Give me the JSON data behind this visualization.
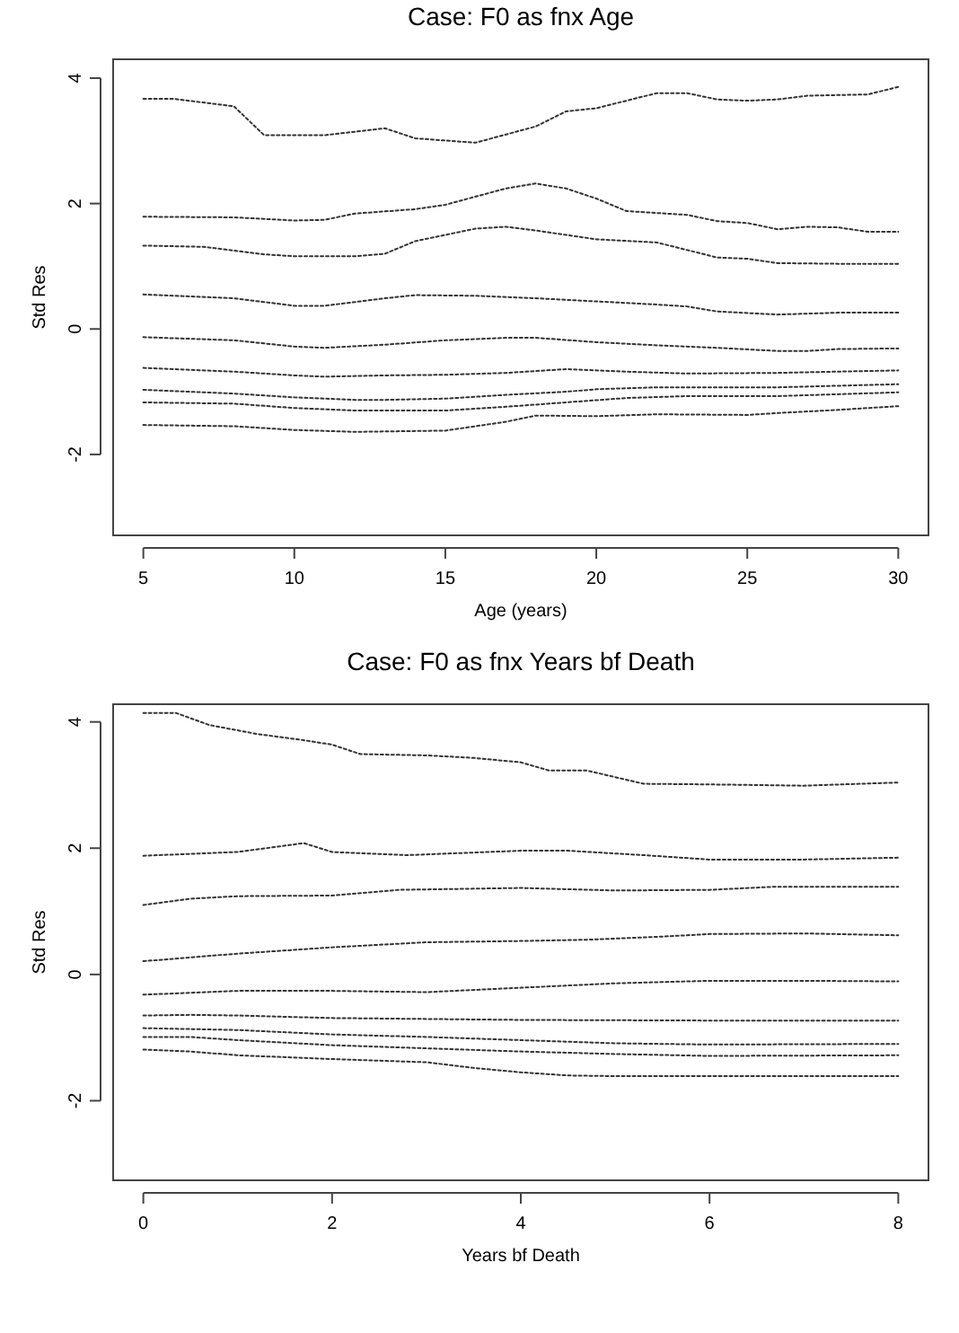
{
  "chart_data": [
    {
      "type": "line",
      "title": "Case: F0 as fnx Age",
      "xlabel": "Age (years)",
      "ylabel": "Std Res",
      "xlim": [
        4,
        31
      ],
      "ylim": [
        -3.29,
        4.3
      ],
      "xticks": [
        5,
        10,
        15,
        20,
        25,
        30
      ],
      "yticks": [
        -2,
        0,
        2,
        4
      ],
      "grid": false,
      "marker": "none",
      "line_style": "dotted",
      "series": [
        {
          "color": "#333333",
          "x": [
            5,
            6,
            8,
            9,
            11,
            13,
            14,
            16,
            18,
            19,
            20,
            22,
            23,
            24,
            25,
            26,
            27,
            29,
            30
          ],
          "values": [
            3.67,
            3.67,
            3.55,
            3.09,
            3.09,
            3.2,
            3.04,
            2.97,
            3.23,
            3.47,
            3.52,
            3.76,
            3.76,
            3.66,
            3.64,
            3.66,
            3.72,
            3.74,
            3.86
          ]
        },
        {
          "color": "#333333",
          "x": [
            5,
            8,
            10,
            11,
            12,
            14,
            15,
            17,
            18,
            19,
            20,
            21,
            23,
            24,
            25,
            26,
            27,
            28,
            29,
            30
          ],
          "values": [
            1.79,
            1.78,
            1.73,
            1.74,
            1.84,
            1.91,
            1.98,
            2.24,
            2.32,
            2.24,
            2.08,
            1.88,
            1.82,
            1.72,
            1.69,
            1.59,
            1.63,
            1.62,
            1.55,
            1.55
          ]
        },
        {
          "color": "#333333",
          "x": [
            5,
            7,
            9,
            10,
            12,
            13,
            14,
            16,
            17,
            18,
            20,
            22,
            24,
            25,
            26,
            28,
            30
          ],
          "values": [
            1.33,
            1.31,
            1.19,
            1.16,
            1.16,
            1.2,
            1.4,
            1.6,
            1.63,
            1.57,
            1.43,
            1.38,
            1.14,
            1.12,
            1.05,
            1.04,
            1.04
          ]
        },
        {
          "color": "#333333",
          "x": [
            5,
            8,
            10,
            11,
            13,
            14,
            16,
            18,
            20,
            22,
            23,
            24,
            26,
            28,
            30
          ],
          "values": [
            0.55,
            0.49,
            0.37,
            0.37,
            0.49,
            0.54,
            0.53,
            0.49,
            0.44,
            0.39,
            0.36,
            0.28,
            0.23,
            0.26,
            0.26
          ]
        },
        {
          "color": "#333333",
          "x": [
            5,
            8,
            10,
            11,
            13,
            15,
            17,
            18,
            20,
            22,
            24,
            26,
            27,
            28,
            30
          ],
          "values": [
            -0.13,
            -0.18,
            -0.28,
            -0.3,
            -0.25,
            -0.18,
            -0.14,
            -0.14,
            -0.21,
            -0.26,
            -0.3,
            -0.35,
            -0.35,
            -0.32,
            -0.31
          ]
        },
        {
          "color": "#333333",
          "x": [
            5,
            8,
            10,
            11,
            13,
            15,
            17,
            19,
            21,
            23,
            26,
            30
          ],
          "values": [
            -0.62,
            -0.68,
            -0.74,
            -0.76,
            -0.74,
            -0.73,
            -0.7,
            -0.64,
            -0.68,
            -0.71,
            -0.7,
            -0.66
          ]
        },
        {
          "color": "#333333",
          "x": [
            5,
            8,
            10,
            12,
            13,
            15,
            17,
            19,
            20,
            22,
            26,
            30
          ],
          "values": [
            -0.97,
            -1.03,
            -1.09,
            -1.13,
            -1.13,
            -1.11,
            -1.05,
            -1,
            -0.96,
            -0.93,
            -0.93,
            -0.88
          ]
        },
        {
          "color": "#333333",
          "x": [
            5,
            8,
            10,
            12,
            15,
            17,
            19,
            21,
            23,
            26,
            30
          ],
          "values": [
            -1.17,
            -1.19,
            -1.26,
            -1.3,
            -1.3,
            -1.24,
            -1.17,
            -1.1,
            -1.07,
            -1.07,
            -1.01
          ]
        },
        {
          "color": "#333333",
          "x": [
            5,
            8,
            10,
            12,
            15,
            17,
            18,
            20,
            22,
            25,
            26,
            28,
            30
          ],
          "values": [
            -1.53,
            -1.55,
            -1.61,
            -1.64,
            -1.62,
            -1.48,
            -1.38,
            -1.39,
            -1.36,
            -1.37,
            -1.34,
            -1.29,
            -1.23
          ]
        }
      ]
    },
    {
      "type": "line",
      "title": "Case: F0 as fnx Years bf Death",
      "xlabel": "Years bf Death",
      "ylabel": "Std Res",
      "xlim": [
        -0.32,
        8.32
      ],
      "ylim": [
        -3.26,
        4.28
      ],
      "xticks": [
        0,
        2,
        4,
        6,
        8
      ],
      "yticks": [
        -2,
        0,
        2,
        4
      ],
      "grid": false,
      "marker": "none",
      "line_style": "dotted",
      "series": [
        {
          "color": "#333333",
          "x": [
            0,
            0.35,
            0.7,
            1.2,
            1.7,
            2,
            2.3,
            3,
            3.5,
            4,
            4.3,
            4.7,
            5.3,
            6,
            7,
            8
          ],
          "values": [
            4.14,
            4.14,
            3.95,
            3.81,
            3.71,
            3.64,
            3.49,
            3.47,
            3.43,
            3.36,
            3.23,
            3.23,
            3.02,
            3.01,
            2.99,
            3.04
          ]
        },
        {
          "color": "#333333",
          "x": [
            0,
            1,
            1.7,
            2,
            2.8,
            4,
            4.5,
            5.3,
            6,
            7,
            8
          ],
          "values": [
            1.88,
            1.94,
            2.08,
            1.94,
            1.89,
            1.96,
            1.96,
            1.89,
            1.82,
            1.82,
            1.85
          ]
        },
        {
          "color": "#333333",
          "x": [
            0,
            0.5,
            1,
            2,
            2.7,
            4,
            4.5,
            5,
            6,
            6.7,
            8
          ],
          "values": [
            1.1,
            1.2,
            1.24,
            1.25,
            1.34,
            1.37,
            1.35,
            1.33,
            1.34,
            1.39,
            1.39
          ]
        },
        {
          "color": "#333333",
          "x": [
            0,
            1,
            2,
            3,
            4,
            4.7,
            5.5,
            6,
            7,
            8
          ],
          "values": [
            0.21,
            0.33,
            0.43,
            0.51,
            0.53,
            0.55,
            0.6,
            0.64,
            0.65,
            0.62
          ]
        },
        {
          "color": "#333333",
          "x": [
            0,
            1,
            2,
            3,
            4,
            5,
            6,
            7,
            8
          ],
          "values": [
            -0.32,
            -0.26,
            -0.26,
            -0.28,
            -0.21,
            -0.14,
            -0.1,
            -0.1,
            -0.11
          ]
        },
        {
          "color": "#333333",
          "x": [
            0,
            0.5,
            1,
            2,
            4,
            6,
            8
          ],
          "values": [
            -0.65,
            -0.64,
            -0.65,
            -0.69,
            -0.72,
            -0.73,
            -0.73
          ]
        },
        {
          "color": "#333333",
          "x": [
            0,
            1,
            2,
            3,
            4,
            5,
            6,
            8
          ],
          "values": [
            -0.85,
            -0.88,
            -0.95,
            -0.99,
            -1.04,
            -1.09,
            -1.11,
            -1.1
          ]
        },
        {
          "color": "#333333",
          "x": [
            0,
            0.5,
            1,
            2,
            3,
            4,
            5,
            6,
            8
          ],
          "values": [
            -0.99,
            -0.99,
            -1.04,
            -1.12,
            -1.17,
            -1.22,
            -1.26,
            -1.29,
            -1.28
          ]
        },
        {
          "color": "#333333",
          "x": [
            0,
            0.5,
            1,
            2,
            3,
            3.5,
            4,
            4.5,
            5,
            6,
            8
          ],
          "values": [
            -1.19,
            -1.22,
            -1.28,
            -1.34,
            -1.39,
            -1.48,
            -1.55,
            -1.6,
            -1.61,
            -1.61,
            -1.61
          ]
        }
      ]
    }
  ]
}
